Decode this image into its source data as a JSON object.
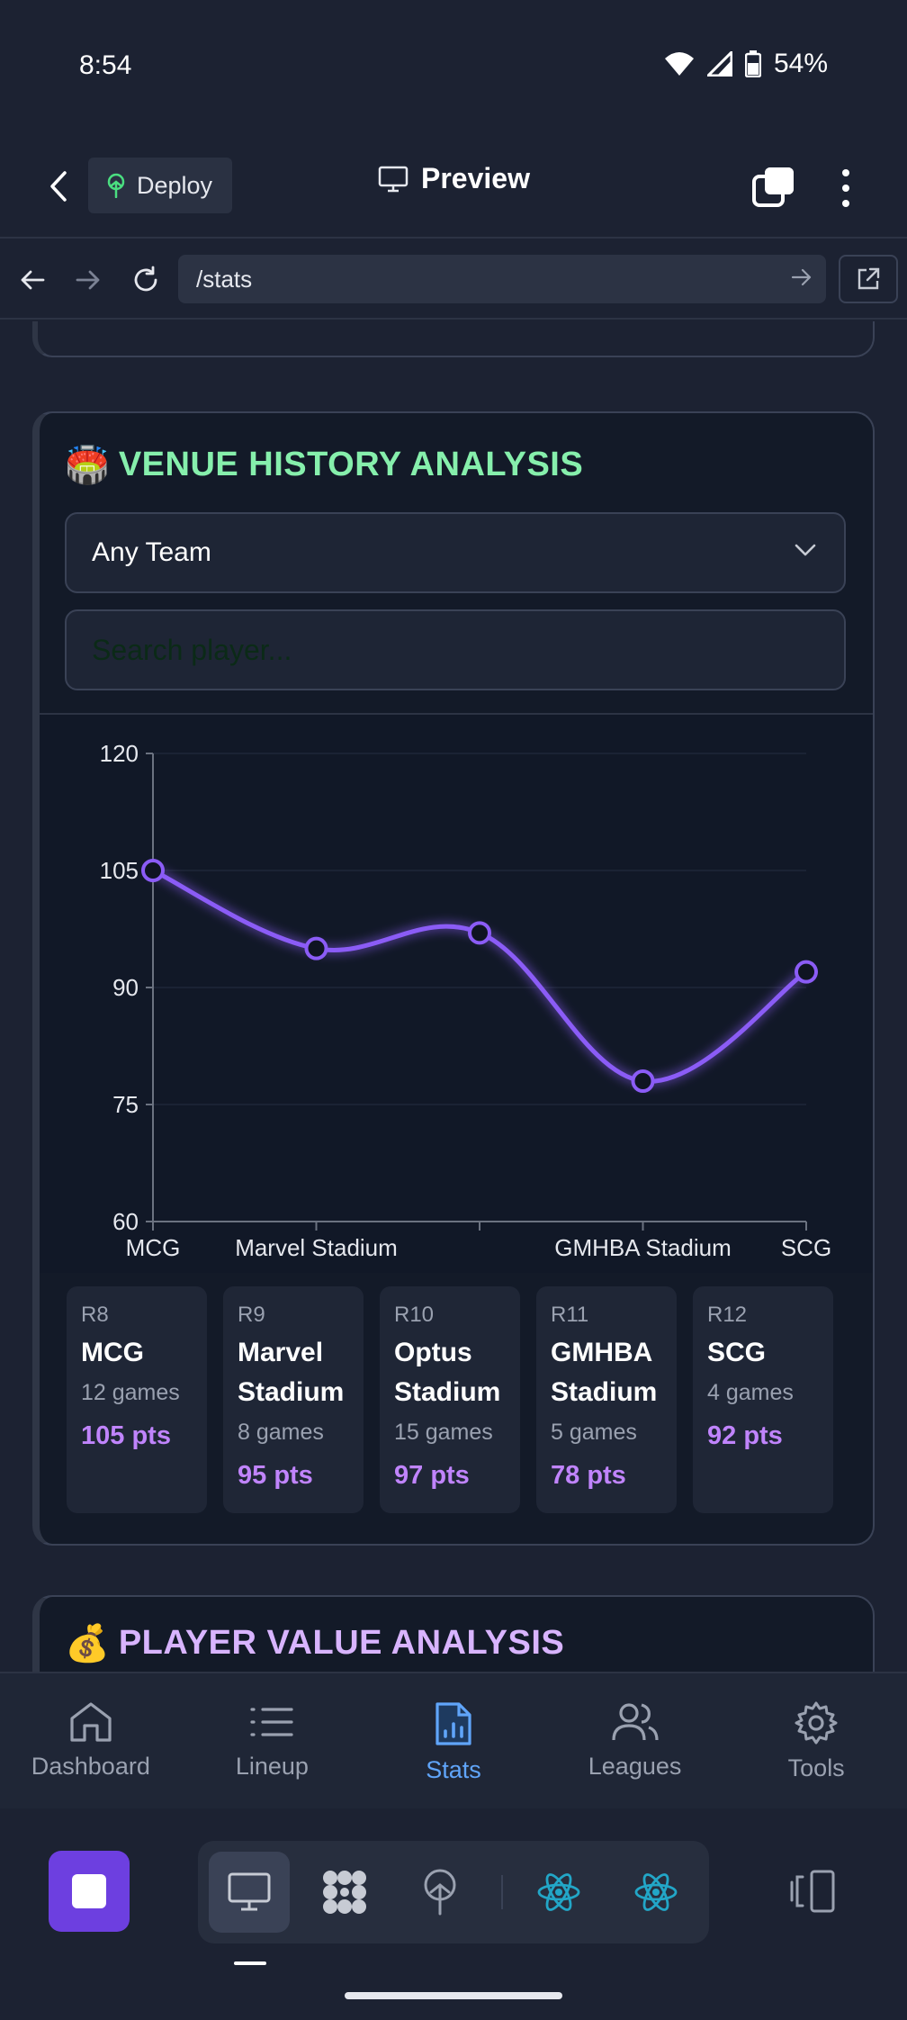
{
  "status_bar": {
    "time": "8:54",
    "battery_pct": "54%"
  },
  "header": {
    "deploy_label": "Deploy",
    "preview_label": "Preview"
  },
  "browser": {
    "url": "/stats"
  },
  "venue_card": {
    "emoji": "🏟️",
    "title": "VENUE HISTORY ANALYSIS",
    "team_select_value": "Any Team",
    "search_placeholder": "Search player...",
    "tiles": [
      {
        "round": "R8",
        "venue": "MCG",
        "games": "12 games",
        "pts": "105 pts"
      },
      {
        "round": "R9",
        "venue": "Marvel Stadium",
        "games": "8 games",
        "pts": "95 pts"
      },
      {
        "round": "R10",
        "venue": "Optus Stadium",
        "games": "15 games",
        "pts": "97 pts"
      },
      {
        "round": "R11",
        "venue": "GMHBA Stadium",
        "games": "5 games",
        "pts": "78 pts"
      },
      {
        "round": "R12",
        "venue": "SCG",
        "games": "4 games",
        "pts": "92 pts"
      }
    ]
  },
  "chart_data": {
    "type": "line",
    "categories": [
      "MCG",
      "Marvel Stadium",
      "Optus Stadium",
      "GMHBA Stadium",
      "SCG"
    ],
    "x_tick_labels_shown": [
      "MCG",
      "Marvel Stadium",
      "",
      "GMHBA Stadium",
      "SCG"
    ],
    "values": [
      105,
      95,
      97,
      78,
      92
    ],
    "ylim": [
      60,
      120
    ],
    "y_ticks": [
      60,
      75,
      90,
      105,
      120
    ],
    "y_tick_labels": [
      "60",
      "75",
      "90",
      "105",
      "120"
    ],
    "line_color": "#8b5cf6",
    "grid": true,
    "legend": "none"
  },
  "value_card": {
    "emoji": "💰",
    "title": "PLAYER VALUE ANALYSIS"
  },
  "bottom_nav": {
    "items": [
      {
        "label": "Dashboard",
        "icon": "home-icon"
      },
      {
        "label": "Lineup",
        "icon": "list-icon"
      },
      {
        "label": "Stats",
        "icon": "stats-file-icon",
        "active": true
      },
      {
        "label": "Leagues",
        "icon": "users-icon"
      },
      {
        "label": "Tools",
        "icon": "gear-icon"
      }
    ],
    "active_color": "#60a5fa"
  }
}
